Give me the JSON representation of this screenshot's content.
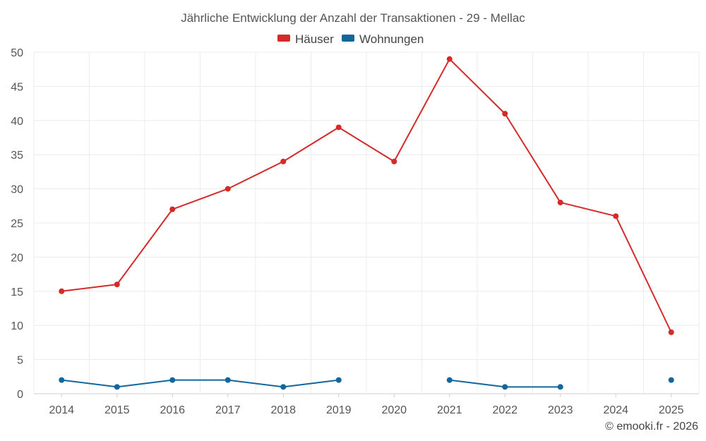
{
  "chart_data": {
    "type": "line",
    "title": "Jährliche Entwicklung der Anzahl der Transaktionen - 29 - Mellac",
    "categories": [
      "2014",
      "2015",
      "2016",
      "2017",
      "2018",
      "2019",
      "2020",
      "2021",
      "2022",
      "2023",
      "2024",
      "2025"
    ],
    "series": [
      {
        "name": "Häuser",
        "color": "#d42a2a",
        "values": [
          15,
          16,
          27,
          30,
          34,
          39,
          34,
          49,
          41,
          28,
          26,
          9
        ]
      },
      {
        "name": "Wohnungen",
        "color": "#11679c",
        "values": [
          2,
          1,
          2,
          2,
          1,
          2,
          null,
          2,
          1,
          1,
          null,
          2
        ]
      }
    ],
    "ylim": [
      0,
      50
    ],
    "yticks": [
      0,
      5,
      10,
      15,
      20,
      25,
      30,
      35,
      40,
      45,
      50
    ],
    "xlabel": "",
    "ylabel": "",
    "grid": true,
    "legend_position": "top-center"
  },
  "credit": "© emooki.fr - 2026"
}
